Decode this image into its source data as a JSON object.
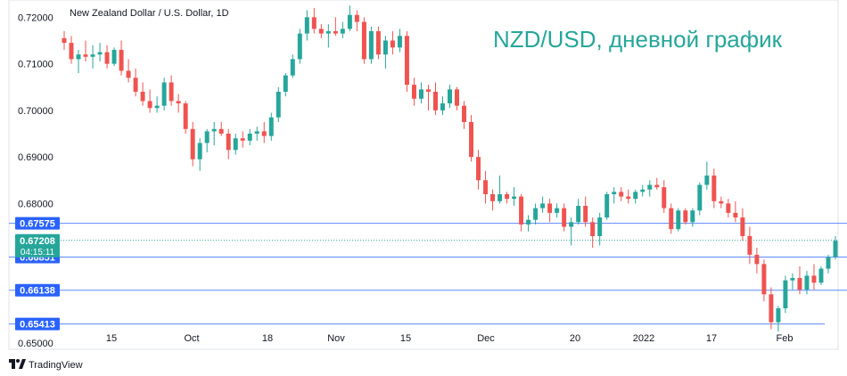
{
  "header": {
    "instrument": "New Zealand Dollar / U.S. Dollar, 1D",
    "overlay_title": "NZD/USD, дневной график"
  },
  "footer": {
    "brand": "TradingView"
  },
  "colors": {
    "up": "#26a69a",
    "down": "#ef5350",
    "level_line": "#2962ff",
    "level_tag": "#2962ff",
    "current_tag": "#26a69a"
  },
  "chart_data": {
    "type": "candlestick",
    "ylim": [
      0.6487,
      0.7237
    ],
    "y_ticks": [
      "0.72000",
      "0.71000",
      "0.70000",
      "0.69000",
      "0.68000",
      "0.65000"
    ],
    "x_ticks": [
      "15",
      "Oct",
      "18",
      "Nov",
      "15",
      "Dec",
      "20",
      "2022",
      "17",
      "Feb"
    ],
    "levels": [
      {
        "label": "0.67575",
        "value": 0.67575
      },
      {
        "label": "0.66851",
        "value": 0.66851
      },
      {
        "label": "0.66138",
        "value": 0.66138
      },
      {
        "label": "0.65413",
        "value": 0.65413
      }
    ],
    "current": {
      "price": "0.67208",
      "countdown": "04:15:11",
      "value": 0.67208
    },
    "candles": [
      [
        0.7155,
        0.717,
        0.713,
        0.7145
      ],
      [
        0.7145,
        0.716,
        0.71,
        0.711
      ],
      [
        0.711,
        0.713,
        0.708,
        0.712
      ],
      [
        0.712,
        0.715,
        0.7105,
        0.7115
      ],
      [
        0.7115,
        0.714,
        0.709,
        0.712
      ],
      [
        0.712,
        0.7145,
        0.7105,
        0.7125
      ],
      [
        0.7125,
        0.714,
        0.709,
        0.71
      ],
      [
        0.71,
        0.7135,
        0.7095,
        0.713
      ],
      [
        0.713,
        0.715,
        0.7075,
        0.7085
      ],
      [
        0.7085,
        0.711,
        0.706,
        0.707
      ],
      [
        0.707,
        0.709,
        0.703,
        0.704
      ],
      [
        0.704,
        0.706,
        0.701,
        0.702
      ],
      [
        0.702,
        0.7045,
        0.6995,
        0.7005
      ],
      [
        0.7005,
        0.703,
        0.6995,
        0.701
      ],
      [
        0.701,
        0.707,
        0.7,
        0.706
      ],
      [
        0.706,
        0.7075,
        0.701,
        0.702
      ],
      [
        0.702,
        0.7035,
        0.6995,
        0.7015
      ],
      [
        0.7015,
        0.702,
        0.695,
        0.696
      ],
      [
        0.696,
        0.6975,
        0.688,
        0.6895
      ],
      [
        0.6895,
        0.694,
        0.687,
        0.693
      ],
      [
        0.693,
        0.696,
        0.691,
        0.6955
      ],
      [
        0.6955,
        0.6975,
        0.6925,
        0.696
      ],
      [
        0.696,
        0.6975,
        0.6945,
        0.695
      ],
      [
        0.695,
        0.696,
        0.6895,
        0.6915
      ],
      [
        0.6915,
        0.695,
        0.6905,
        0.694
      ],
      [
        0.694,
        0.6955,
        0.692,
        0.6935
      ],
      [
        0.6935,
        0.696,
        0.6925,
        0.695
      ],
      [
        0.695,
        0.6965,
        0.6935,
        0.6955
      ],
      [
        0.6955,
        0.6975,
        0.693,
        0.6945
      ],
      [
        0.6945,
        0.6995,
        0.6935,
        0.6985
      ],
      [
        0.6985,
        0.705,
        0.6975,
        0.704
      ],
      [
        0.704,
        0.708,
        0.703,
        0.7075
      ],
      [
        0.7075,
        0.712,
        0.707,
        0.711
      ],
      [
        0.711,
        0.7175,
        0.71,
        0.7165
      ],
      [
        0.7165,
        0.7215,
        0.715,
        0.72
      ],
      [
        0.72,
        0.722,
        0.7165,
        0.7175
      ],
      [
        0.7175,
        0.7185,
        0.7155,
        0.7165
      ],
      [
        0.7165,
        0.7185,
        0.7135,
        0.717
      ],
      [
        0.717,
        0.72,
        0.716,
        0.7165
      ],
      [
        0.7165,
        0.719,
        0.7155,
        0.7175
      ],
      [
        0.7175,
        0.7225,
        0.717,
        0.7205
      ],
      [
        0.7205,
        0.7215,
        0.717,
        0.719
      ],
      [
        0.719,
        0.72,
        0.71,
        0.711
      ],
      [
        0.711,
        0.718,
        0.71,
        0.717
      ],
      [
        0.717,
        0.718,
        0.711,
        0.712
      ],
      [
        0.712,
        0.716,
        0.709,
        0.715
      ],
      [
        0.715,
        0.717,
        0.712,
        0.7135
      ],
      [
        0.7135,
        0.7175,
        0.7125,
        0.716
      ],
      [
        0.716,
        0.717,
        0.704,
        0.7055
      ],
      [
        0.7055,
        0.707,
        0.701,
        0.7025
      ],
      [
        0.7025,
        0.706,
        0.7015,
        0.7045
      ],
      [
        0.7045,
        0.7055,
        0.7,
        0.704
      ],
      [
        0.704,
        0.706,
        0.699,
        0.7
      ],
      [
        0.7,
        0.703,
        0.699,
        0.7015
      ],
      [
        0.7015,
        0.7055,
        0.7005,
        0.7045
      ],
      [
        0.7045,
        0.705,
        0.7,
        0.701
      ],
      [
        0.701,
        0.702,
        0.696,
        0.6975
      ],
      [
        0.6975,
        0.699,
        0.689,
        0.69
      ],
      [
        0.69,
        0.6915,
        0.683,
        0.685
      ],
      [
        0.685,
        0.687,
        0.68,
        0.682
      ],
      [
        0.682,
        0.683,
        0.6785,
        0.6805
      ],
      [
        0.6805,
        0.686,
        0.68,
        0.682
      ],
      [
        0.682,
        0.6825,
        0.68,
        0.681
      ],
      [
        0.681,
        0.6835,
        0.6795,
        0.6815
      ],
      [
        0.6815,
        0.682,
        0.674,
        0.6755
      ],
      [
        0.6755,
        0.6775,
        0.674,
        0.6765
      ],
      [
        0.6765,
        0.68,
        0.6755,
        0.679
      ],
      [
        0.679,
        0.6815,
        0.678,
        0.68
      ],
      [
        0.68,
        0.681,
        0.676,
        0.678
      ],
      [
        0.678,
        0.68,
        0.677,
        0.679
      ],
      [
        0.679,
        0.68,
        0.674,
        0.675
      ],
      [
        0.675,
        0.677,
        0.671,
        0.676
      ],
      [
        0.676,
        0.681,
        0.6755,
        0.6795
      ],
      [
        0.6795,
        0.6815,
        0.675,
        0.676
      ],
      [
        0.676,
        0.677,
        0.6705,
        0.673
      ],
      [
        0.673,
        0.678,
        0.671,
        0.677
      ],
      [
        0.677,
        0.6825,
        0.6765,
        0.682
      ],
      [
        0.682,
        0.6835,
        0.68,
        0.6825
      ],
      [
        0.6825,
        0.6835,
        0.6805,
        0.6815
      ],
      [
        0.6815,
        0.683,
        0.68,
        0.681
      ],
      [
        0.681,
        0.683,
        0.68,
        0.6825
      ],
      [
        0.6825,
        0.684,
        0.6815,
        0.683
      ],
      [
        0.683,
        0.685,
        0.6815,
        0.684
      ],
      [
        0.684,
        0.6855,
        0.683,
        0.6835
      ],
      [
        0.6835,
        0.685,
        0.678,
        0.679
      ],
      [
        0.679,
        0.68,
        0.6735,
        0.6745
      ],
      [
        0.6745,
        0.679,
        0.674,
        0.6785
      ],
      [
        0.6785,
        0.679,
        0.6755,
        0.676
      ],
      [
        0.676,
        0.679,
        0.675,
        0.6785
      ],
      [
        0.6785,
        0.6845,
        0.6775,
        0.684
      ],
      [
        0.684,
        0.689,
        0.683,
        0.686
      ],
      [
        0.686,
        0.6875,
        0.679,
        0.6805
      ],
      [
        0.6805,
        0.6815,
        0.679,
        0.68
      ],
      [
        0.68,
        0.681,
        0.677,
        0.678
      ],
      [
        0.678,
        0.6805,
        0.676,
        0.677
      ],
      [
        0.677,
        0.679,
        0.672,
        0.673
      ],
      [
        0.673,
        0.675,
        0.667,
        0.669
      ],
      [
        0.669,
        0.6705,
        0.665,
        0.667
      ],
      [
        0.667,
        0.668,
        0.659,
        0.6605
      ],
      [
        0.6605,
        0.662,
        0.653,
        0.6545
      ],
      [
        0.6545,
        0.658,
        0.6525,
        0.6575
      ],
      [
        0.6575,
        0.6645,
        0.6565,
        0.6635
      ],
      [
        0.6635,
        0.665,
        0.6615,
        0.664
      ],
      [
        0.664,
        0.6665,
        0.6605,
        0.6615
      ],
      [
        0.6615,
        0.6655,
        0.6605,
        0.6645
      ],
      [
        0.6645,
        0.667,
        0.6615,
        0.663
      ],
      [
        0.663,
        0.6665,
        0.6625,
        0.666
      ],
      [
        0.666,
        0.669,
        0.665,
        0.6685
      ],
      [
        0.6685,
        0.673,
        0.668,
        0.672
      ]
    ]
  }
}
